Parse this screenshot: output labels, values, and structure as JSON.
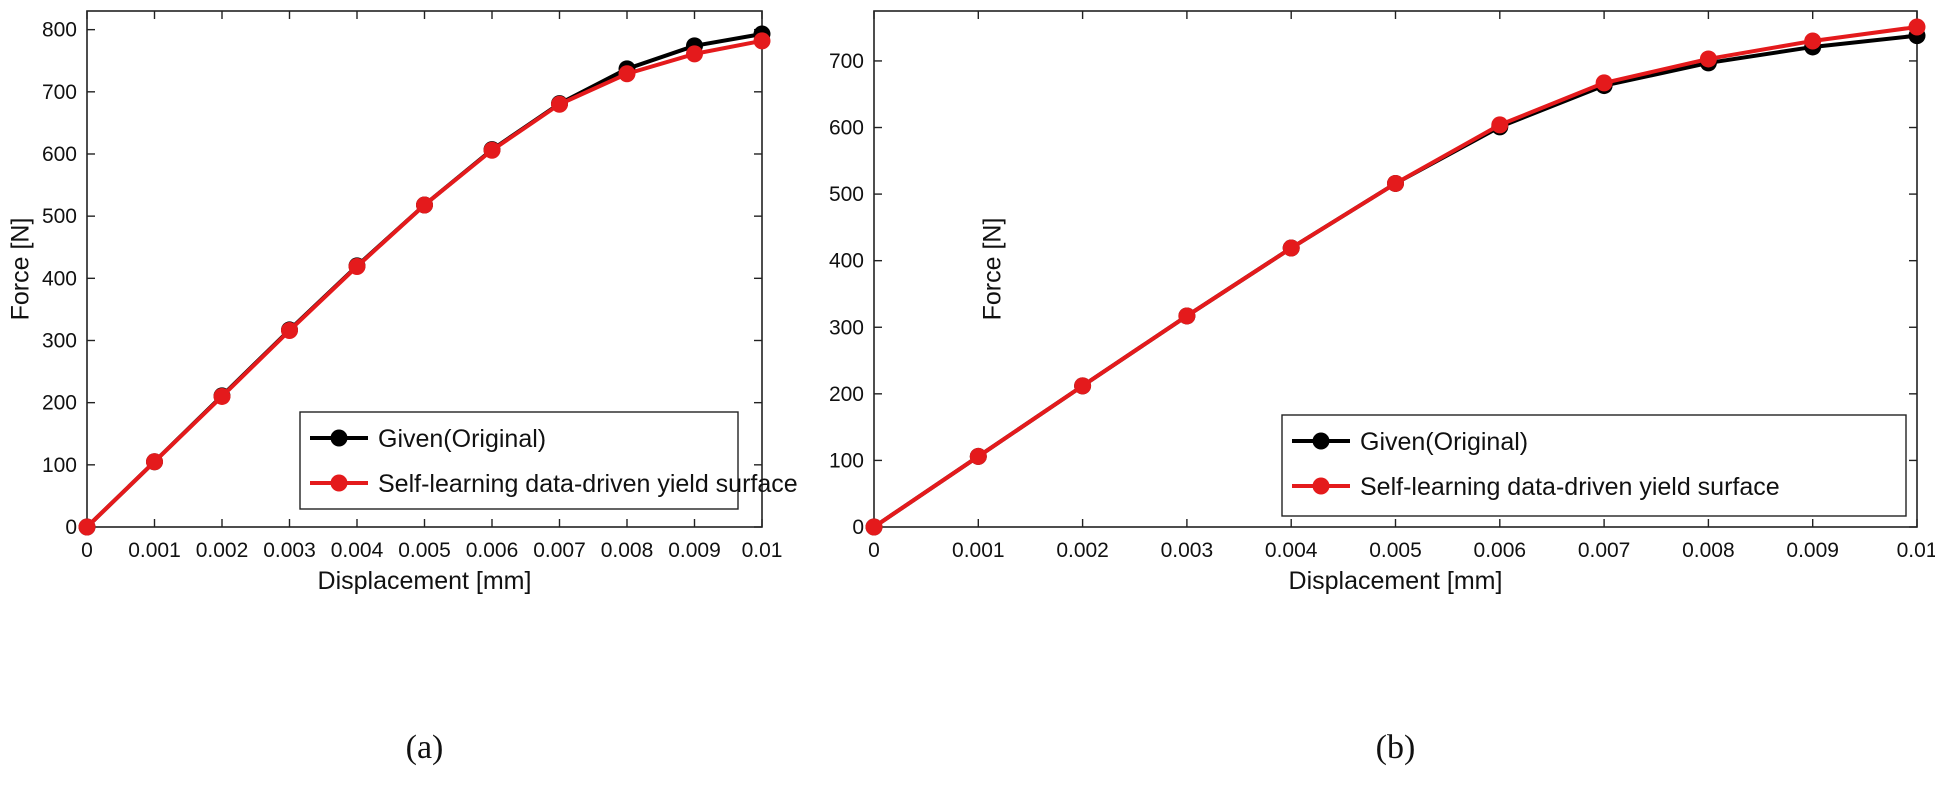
{
  "chart_data": [
    {
      "type": "line",
      "panel_caption": "(a)",
      "xlabel": "Displacement [mm]",
      "ylabel": "Force [N]",
      "xlim": [
        0,
        0.01
      ],
      "ylim": [
        0,
        830
      ],
      "x_ticks": [
        "0",
        "0.001",
        "0.002",
        "0.003",
        "0.004",
        "0.005",
        "0.006",
        "0.007",
        "0.008",
        "0.009",
        "0.01"
      ],
      "y_ticks": [
        "0",
        "100",
        "200",
        "300",
        "400",
        "500",
        "600",
        "700",
        "800"
      ],
      "legend_position": "lower-right",
      "x": [
        0,
        0.001,
        0.002,
        0.003,
        0.004,
        0.005,
        0.006,
        0.007,
        0.008,
        0.009,
        0.01
      ],
      "series": [
        {
          "name": "Given(Original)",
          "color": "#000000",
          "values": [
            0,
            105,
            211,
            317,
            420,
            518,
            607,
            681,
            737,
            774,
            793
          ]
        },
        {
          "name": "Self-learning data-driven yield surface",
          "color": "#e41a1c",
          "values": [
            0,
            105,
            210,
            316,
            419,
            518,
            606,
            680,
            729,
            761,
            782
          ]
        }
      ]
    },
    {
      "type": "line",
      "panel_caption": "(b)",
      "xlabel": "Displacement [mm]",
      "ylabel": "Force [N]",
      "xlim": [
        0,
        0.01
      ],
      "ylim": [
        0,
        775
      ],
      "x_ticks": [
        "0",
        "0.001",
        "0.002",
        "0.003",
        "0.004",
        "0.005",
        "0.006",
        "0.007",
        "0.008",
        "0.009",
        "0.01"
      ],
      "y_ticks": [
        "0",
        "100",
        "200",
        "300",
        "400",
        "500",
        "600",
        "700"
      ],
      "legend_position": "lower-right",
      "x": [
        0,
        0.001,
        0.002,
        0.003,
        0.004,
        0.005,
        0.006,
        0.007,
        0.008,
        0.009,
        0.01
      ],
      "series": [
        {
          "name": "Given(Original)",
          "color": "#000000",
          "values": [
            0,
            106,
            212,
            317,
            419,
            516,
            601,
            663,
            697,
            721,
            738
          ]
        },
        {
          "name": "Self-learning data-driven yield surface",
          "color": "#e41a1c",
          "values": [
            0,
            106,
            212,
            317,
            419,
            516,
            604,
            667,
            703,
            730,
            751
          ]
        }
      ]
    }
  ]
}
